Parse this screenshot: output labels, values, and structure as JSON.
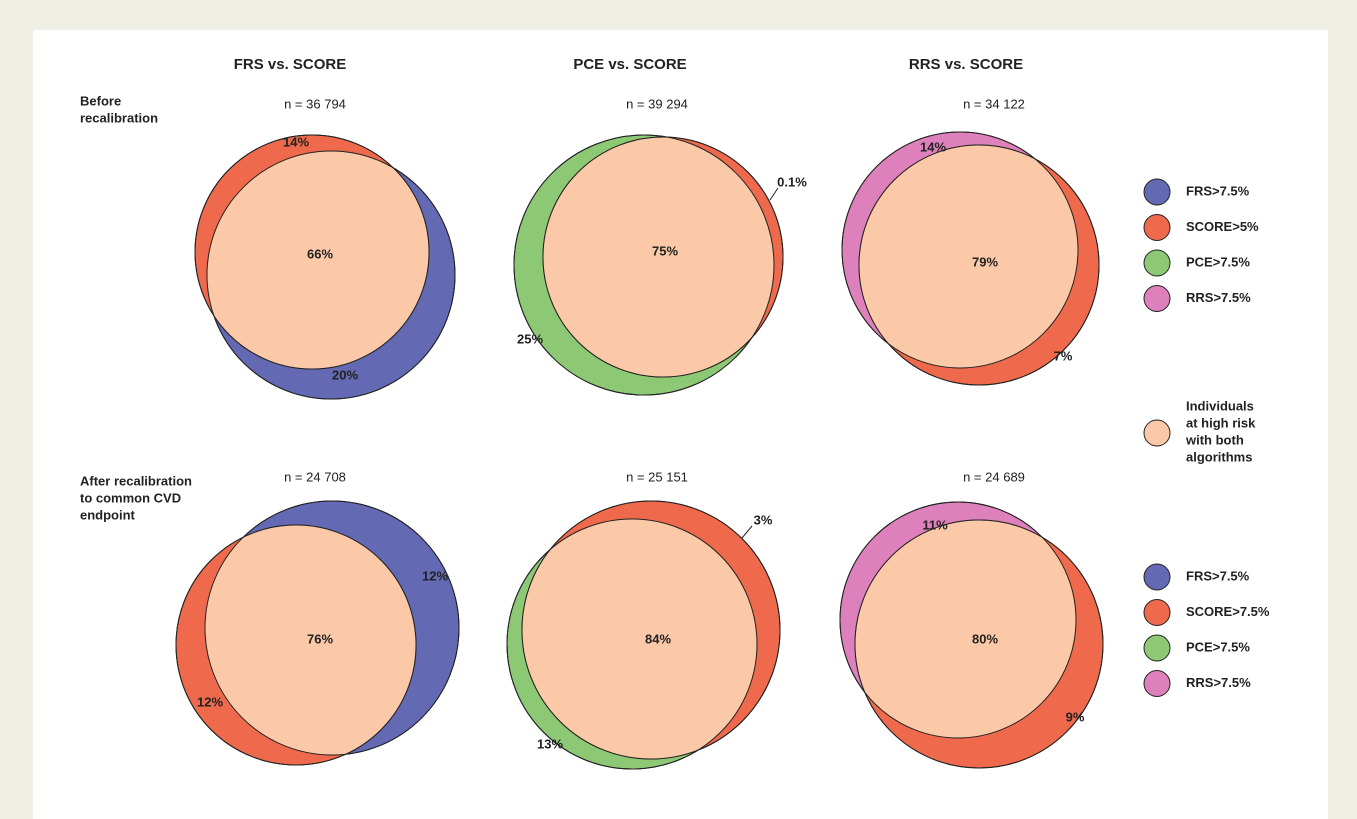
{
  "column_titles": [
    "FRS vs. SCORE",
    "PCE vs. SCORE",
    "RRS vs. SCORE"
  ],
  "rows": [
    {
      "label_lines": [
        "Before",
        "recalibration"
      ],
      "panels": [
        {
          "n": "n = 36 794",
          "percentages": [
            "14%",
            "66%",
            "20%"
          ]
        },
        {
          "n": "n = 39 294",
          "percentages": [
            "0.1%",
            "75%",
            "25%"
          ]
        },
        {
          "n": "n = 34 122",
          "percentages": [
            "14%",
            "79%",
            "7%"
          ]
        }
      ]
    },
    {
      "label_lines": [
        "After recalibration",
        "to common CVD",
        "endpoint"
      ],
      "panels": [
        {
          "n": "n = 24 708",
          "percentages": [
            "12%",
            "76%",
            "12%"
          ]
        },
        {
          "n": "n = 25 151",
          "percentages": [
            "3%",
            "84%",
            "13%"
          ]
        },
        {
          "n": "n = 24 689",
          "percentages": [
            "11%",
            "80%",
            "9%"
          ]
        }
      ]
    }
  ],
  "legends": [
    {
      "items": [
        {
          "label": "FRS>7.5%",
          "color": "#6469b4"
        },
        {
          "label": "SCORE>5%",
          "color": "#ef6a4c"
        },
        {
          "label": "PCE>7.5%",
          "color": "#8dc875"
        },
        {
          "label": "RRS>7.5%",
          "color": "#dd80bb"
        }
      ]
    },
    {
      "items": [
        {
          "label": "FRS>7.5%",
          "color": "#6469b4"
        },
        {
          "label": "SCORE>7.5%",
          "color": "#ef6a4c"
        },
        {
          "label": "PCE>7.5%",
          "color": "#8dc875"
        },
        {
          "label": "RRS>7.5%",
          "color": "#dd80bb"
        }
      ]
    }
  ],
  "overlap_legend": {
    "label_lines": [
      "Individuals",
      "at high risk",
      "with both",
      "algorithms"
    ],
    "color": "#fbc9a7"
  }
}
